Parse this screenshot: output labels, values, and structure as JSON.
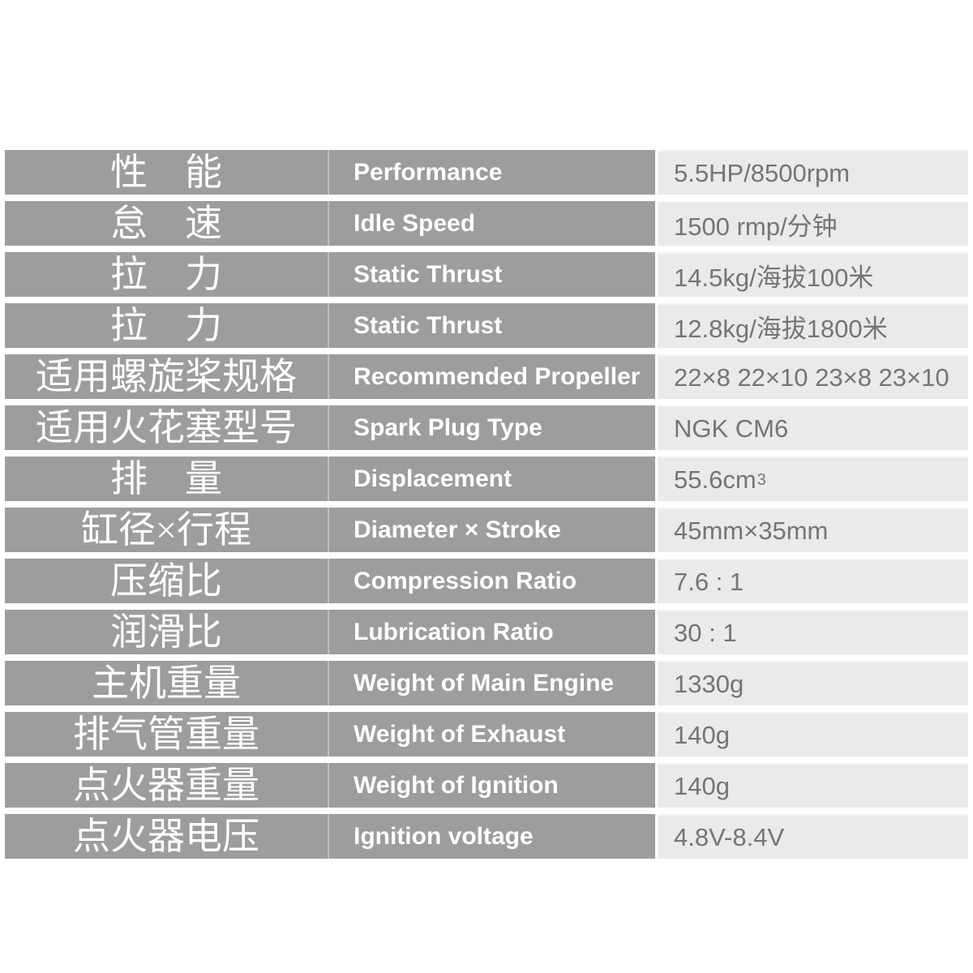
{
  "colors": {
    "label_cell_bg": "#9d9d9d",
    "label_text": "#ffffff",
    "value_cell_bg": "#eaeaea",
    "value_text": "#757575",
    "page_bg": "#ffffff"
  },
  "table": {
    "rows": [
      {
        "cn": "性　能",
        "en": "Performance",
        "value": "5.5HP/8500rpm"
      },
      {
        "cn": "怠　速",
        "en": "Idle Speed",
        "value": "1500 rmp/分钟"
      },
      {
        "cn": "拉　力",
        "en": "Static Thrust",
        "value": "14.5kg/海拔100米"
      },
      {
        "cn": "拉　力",
        "en": "Static Thrust",
        "value": "12.8kg/海拔1800米"
      },
      {
        "cn": "适用螺旋桨规格",
        "en": "Recommended Propeller",
        "value": "22×8 22×10 23×8 23×10"
      },
      {
        "cn": "适用火花塞型号",
        "en": "Spark Plug Type",
        "value": "NGK CM6"
      },
      {
        "cn": "排　量",
        "en": "Displacement",
        "value": "55.6cm",
        "value_sup": "3"
      },
      {
        "cn": "缸径×行程",
        "en": "Diameter × Stroke",
        "value": "45mm×35mm"
      },
      {
        "cn": "压缩比",
        "en": "Compression Ratio",
        "value": "7.6 : 1"
      },
      {
        "cn": "润滑比",
        "en": "Lubrication Ratio",
        "value": "30 : 1"
      },
      {
        "cn": "主机重量",
        "en": "Weight of Main Engine",
        "value": "1330g"
      },
      {
        "cn": "排气管重量",
        "en": "Weight of Exhaust",
        "value": "140g"
      },
      {
        "cn": "点火器重量",
        "en": "Weight of Ignition",
        "value": "140g"
      },
      {
        "cn": "点火器电压",
        "en": "Ignition voltage",
        "value": "4.8V-8.4V"
      }
    ]
  }
}
